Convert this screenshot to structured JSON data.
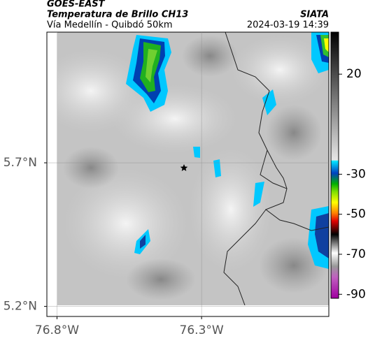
{
  "header": {
    "source": "GOES-EAST",
    "product": "Temperatura de Brillo CH13",
    "route": "Vía Medellín - Quibdó 50km",
    "agency": "SIATA",
    "datetime": "2024-03-19 14:39"
  },
  "map": {
    "lon_range": [
      -76.835,
      -75.86
    ],
    "lat_range": [
      5.165,
      6.155
    ],
    "lat_ticks": [
      {
        "value": 5.2,
        "label": "5.2°N"
      },
      {
        "value": 5.7,
        "label": "5.7°N"
      }
    ],
    "lon_ticks": [
      {
        "value": -76.8,
        "label": "76.8°W"
      },
      {
        "value": -76.3,
        "label": "76.3°W"
      }
    ]
  },
  "colorbar": {
    "range": [
      -92,
      41
    ],
    "ticks": [
      20,
      -30,
      -50,
      -70,
      -90
    ]
  }
}
